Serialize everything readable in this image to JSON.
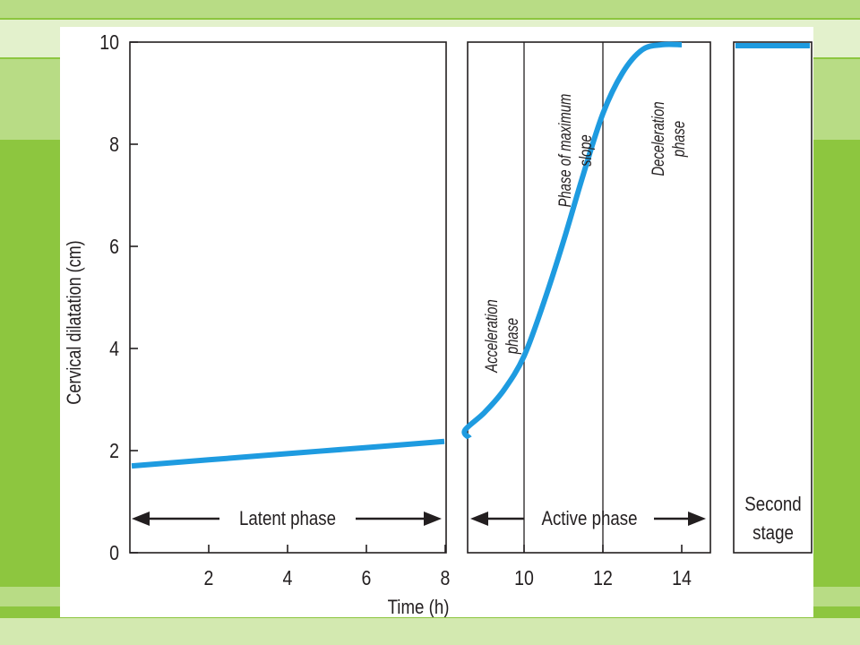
{
  "slide": {
    "colors": {
      "background": "#8dc63f",
      "band_light": "#d3e9b0",
      "band_mid": "#b8dc85",
      "band_pale": "#e3f1cc",
      "card": "#ffffff",
      "curve": "#1e9be0",
      "ink": "#231f20"
    }
  },
  "chart_data": {
    "type": "line",
    "title": "",
    "xlabel": "Time (h)",
    "ylabel": "Cervical dilatation (cm)",
    "xlim": [
      0,
      14
    ],
    "ylim": [
      0,
      10
    ],
    "x_ticks": [
      2,
      4,
      6,
      8,
      10,
      12,
      14
    ],
    "y_ticks": [
      0,
      2,
      4,
      6,
      8,
      10
    ],
    "grid": false,
    "panels": [
      {
        "name": "latent",
        "x_range": [
          0,
          8
        ]
      },
      {
        "name": "active",
        "x_range": [
          8,
          14
        ]
      },
      {
        "name": "second",
        "x_range": null
      }
    ],
    "series": [
      {
        "segment": "latent",
        "points": [
          [
            0,
            1.7
          ],
          [
            2,
            1.82
          ],
          [
            4,
            1.94
          ],
          [
            6,
            2.06
          ],
          [
            8,
            2.18
          ]
        ]
      },
      {
        "segment": "active",
        "points": [
          [
            8,
            2.25
          ],
          [
            8.5,
            2.4
          ],
          [
            9,
            2.75
          ],
          [
            9.5,
            3.2
          ],
          [
            10,
            3.85
          ],
          [
            10.5,
            4.9
          ],
          [
            11,
            6.1
          ],
          [
            11.5,
            7.4
          ],
          [
            12,
            8.6
          ],
          [
            12.5,
            9.4
          ],
          [
            13,
            9.85
          ],
          [
            13.5,
            9.95
          ],
          [
            14,
            9.95
          ]
        ]
      },
      {
        "segment": "second",
        "points": [
          [
            0,
            9.93
          ],
          [
            1,
            9.93
          ]
        ]
      }
    ],
    "phase_lines": [
      10,
      12
    ],
    "annotations": {
      "latent_phase": "Latent phase",
      "active_phase": "Active phase",
      "second_stage_line1": "Second",
      "second_stage_line2": "stage",
      "acceleration_line1": "Acceleration",
      "acceleration_line2": "phase",
      "max_slope_line1": "Phase of maximum",
      "max_slope_line2": "slope",
      "deceleration_line1": "Deceleration",
      "deceleration_line2": "phase"
    }
  }
}
